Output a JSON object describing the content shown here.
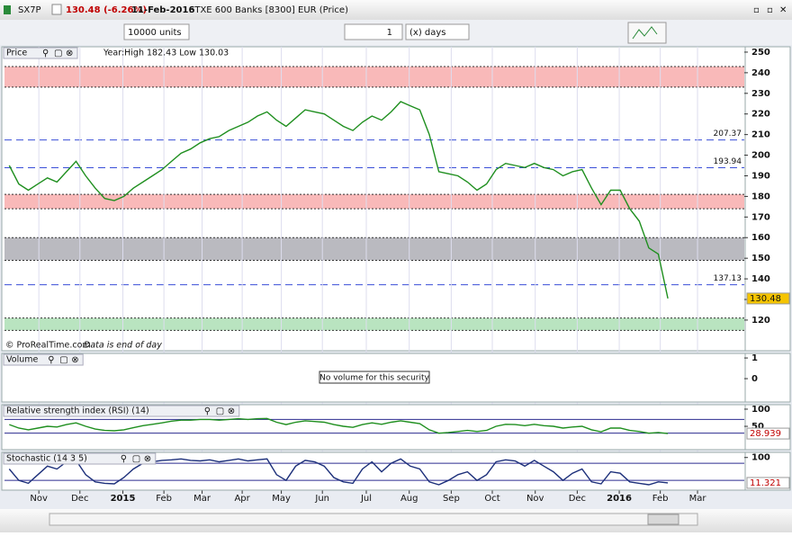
{
  "header": {
    "symbol": "SX7P",
    "change": "130.48 (-6.26%)",
    "date": "11-Feb-2016",
    "name": "STXE 600 Banks [8300] EUR (Price)"
  },
  "toolbar": {
    "units": "10000 units",
    "period": "1",
    "period_unit": "(x) days"
  },
  "chart_data": [
    {
      "type": "line",
      "title": "Price",
      "subtitle": "Year:High 182.43 Low 130.03",
      "annotation": "© ProRealTime.com",
      "note": "Data is end of day",
      "color": "#1f8f1f",
      "values": [
        195,
        186,
        183,
        186,
        189,
        187,
        192,
        197,
        190,
        184,
        179,
        178,
        180,
        184,
        187,
        190,
        193,
        197,
        201,
        203,
        206,
        208,
        209,
        212,
        214,
        216,
        219,
        221,
        217,
        214,
        218,
        222,
        221,
        220,
        217,
        214,
        212,
        216,
        219,
        217,
        221,
        226,
        224,
        222,
        210,
        192,
        191,
        190,
        187,
        183,
        186,
        193,
        196,
        195,
        194,
        196,
        194,
        193,
        190,
        192,
        193,
        184,
        176,
        183,
        183,
        174,
        168,
        155,
        152,
        130.48
      ],
      "xlim": [
        -0.5,
        77
      ],
      "xticks": [
        {
          "value": 3.1,
          "label": "Nov"
        },
        {
          "value": 7.4,
          "label": "Dec"
        },
        {
          "value": 11.9,
          "label": "2015"
        },
        {
          "value": 16.2,
          "label": "Feb"
        },
        {
          "value": 20.2,
          "label": "Mar"
        },
        {
          "value": 24.4,
          "label": "Apr"
        },
        {
          "value": 28.5,
          "label": "May"
        },
        {
          "value": 32.8,
          "label": "Jun"
        },
        {
          "value": 37.4,
          "label": "Jul"
        },
        {
          "value": 41.9,
          "label": "Aug"
        },
        {
          "value": 46.3,
          "label": "Sep"
        },
        {
          "value": 50.6,
          "label": "Oct"
        },
        {
          "value": 55.1,
          "label": "Nov"
        },
        {
          "value": 59.5,
          "label": "Dec"
        },
        {
          "value": 63.9,
          "label": "2016"
        },
        {
          "value": 68.2,
          "label": "Feb"
        },
        {
          "value": 72.1,
          "label": "Mar"
        }
      ],
      "ylim": [
        110.8,
        252.6
      ],
      "yticks": [
        120,
        130,
        140,
        150,
        160,
        170,
        180,
        190,
        200,
        210,
        220,
        230,
        240,
        250
      ],
      "levels": [
        207.37,
        193.94,
        137.13
      ],
      "level_color": "#3a4fd8",
      "zones": [
        {
          "from": 233,
          "to": 243,
          "color": "#f7a8a8"
        },
        {
          "from": 174,
          "to": 181,
          "color": "#f7a8a8"
        },
        {
          "from": 149,
          "to": 160,
          "color": "#a9a9b0"
        },
        {
          "from": 115,
          "to": 121,
          "color": "#a8ddb0"
        }
      ]
    },
    {
      "type": "empty",
      "title": "Volume",
      "message": "No volume for this security",
      "ylim": [
        -1.13,
        1.22
      ],
      "yticks": [
        0,
        1
      ]
    },
    {
      "type": "line",
      "title": "Relative strength index (RSI) (14)",
      "color": "#1f8f1f",
      "values": [
        55,
        45,
        40,
        45,
        50,
        48,
        55,
        60,
        50,
        42,
        38,
        37,
        40,
        46,
        52,
        56,
        60,
        65,
        68,
        68,
        70,
        70,
        68,
        70,
        72,
        70,
        72,
        73,
        62,
        55,
        62,
        66,
        64,
        62,
        55,
        50,
        47,
        55,
        60,
        56,
        62,
        66,
        62,
        58,
        40,
        30,
        32,
        35,
        38,
        35,
        38,
        50,
        56,
        55,
        52,
        56,
        52,
        50,
        45,
        48,
        50,
        40,
        34,
        45,
        45,
        38,
        35,
        30,
        32,
        28.939
      ],
      "ylim": [
        -18,
        113
      ],
      "yticks": [
        50,
        100
      ],
      "levels": [
        70,
        30
      ],
      "level_color": "#2b2b8f"
    },
    {
      "type": "line",
      "title": "Stochastic (14 3 5)",
      "color": "#1c2f7a",
      "values": [
        60,
        20,
        10,
        40,
        70,
        60,
        85,
        90,
        40,
        15,
        10,
        8,
        30,
        60,
        80,
        85,
        90,
        92,
        95,
        90,
        88,
        92,
        85,
        90,
        95,
        88,
        92,
        95,
        40,
        20,
        70,
        90,
        85,
        70,
        30,
        15,
        10,
        60,
        85,
        50,
        80,
        95,
        70,
        60,
        15,
        5,
        20,
        40,
        50,
        20,
        40,
        85,
        92,
        88,
        70,
        90,
        70,
        50,
        20,
        45,
        60,
        15,
        8,
        50,
        45,
        15,
        10,
        5,
        15,
        11.321
      ],
      "ylim": [
        -14,
        118
      ],
      "yticks": [
        100
      ],
      "levels": [
        80,
        20
      ],
      "level_color": "#2b2b8f"
    }
  ]
}
